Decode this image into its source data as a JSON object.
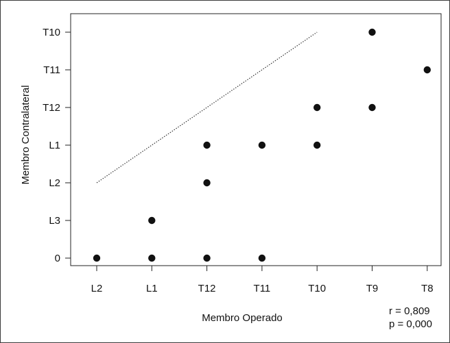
{
  "chart_data": {
    "type": "scatter",
    "title": "",
    "xlabel": "Membro Operado",
    "ylabel": "Membro Contralateral",
    "x_categories": [
      "L2",
      "L1",
      "T12",
      "T11",
      "T10",
      "T9",
      "T8"
    ],
    "y_categories": [
      "0",
      "L3",
      "L2",
      "L1",
      "T12",
      "T11",
      "T10"
    ],
    "points": [
      {
        "x": "L2",
        "y": "0"
      },
      {
        "x": "L1",
        "y": "0"
      },
      {
        "x": "L1",
        "y": "L3"
      },
      {
        "x": "T12",
        "y": "0"
      },
      {
        "x": "T12",
        "y": "L2"
      },
      {
        "x": "T12",
        "y": "L1"
      },
      {
        "x": "T11",
        "y": "0"
      },
      {
        "x": "T11",
        "y": "L1"
      },
      {
        "x": "T10",
        "y": "L1"
      },
      {
        "x": "T10",
        "y": "T12"
      },
      {
        "x": "T9",
        "y": "T12"
      },
      {
        "x": "T9",
        "y": "T10"
      },
      {
        "x": "T8",
        "y": "T11"
      }
    ],
    "reference_line": {
      "style": "dotted",
      "from": {
        "x": "L2",
        "y": "L2"
      },
      "to": {
        "x": "T10",
        "y": "T10"
      }
    },
    "grid": false,
    "legend": "none",
    "annotations": [
      "r  = 0,809",
      "p = 0,000"
    ],
    "colors": {
      "points": "#111111",
      "axes": "#222222",
      "reference_line": "#333333"
    }
  }
}
